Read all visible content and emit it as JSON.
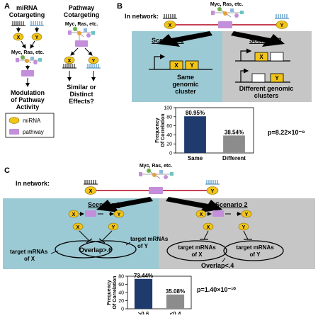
{
  "panels": {
    "A": {
      "letter": "A",
      "mirna_title": [
        "miRNA",
        "Cotargeting"
      ],
      "pathway_title": [
        "Pathway",
        "Cotargeting"
      ],
      "gene_x": "X",
      "gene_y": "Y",
      "pathway_label": "Myc, Ras, etc.",
      "modulation": [
        "Modulation",
        "of Pathway",
        "Activity"
      ],
      "effects": [
        "Similar or",
        "Distinct",
        "Effects?"
      ],
      "legend": {
        "mirna": "miRNA",
        "pathway": "pathway"
      }
    },
    "B": {
      "letter": "B",
      "in_network": "In network:",
      "pathway_label": "Myc, Ras, etc.",
      "gene_x": "X",
      "gene_y": "Y",
      "scenario1": "Scenario 1",
      "scenario2": "Scenario 2",
      "same_cluster": [
        "Same",
        "genomic",
        "cluster"
      ],
      "diff_cluster": [
        "Different genomic",
        "clusters"
      ],
      "pvalue": "p=8.22×10⁻⁸"
    },
    "C": {
      "letter": "C",
      "in_network": "In network:",
      "pathway_label": "Myc, Ras, etc.",
      "gene_x": "X",
      "gene_y": "Y",
      "scenario1": "Scenario 1",
      "scenario2": "Scenario 2",
      "targets_x": [
        "target mRNAs",
        "of X"
      ],
      "targets_y": [
        "target mRNAs",
        "of Y"
      ],
      "overlap_high": "Overlap>.6",
      "overlap_low": "Overlap<.4",
      "pvalue": "p=1.40×10⁻¹⁰"
    }
  },
  "chart_data": [
    {
      "type": "bar",
      "categories": [
        "Same",
        "Different"
      ],
      "values": [
        80.95,
        38.54
      ],
      "value_labels": [
        "80.95%",
        "38.54%"
      ],
      "ylabel": [
        "Frequency",
        "Of Correlation"
      ],
      "ylim": [
        0,
        100
      ],
      "yticks": [
        0,
        20,
        40,
        60,
        80,
        100
      ],
      "colors": [
        "#1f3a6d",
        "#8c8c8c"
      ]
    },
    {
      "type": "bar",
      "categories": [
        ">0.6",
        "<0.4"
      ],
      "values": [
        73.44,
        35.08
      ],
      "value_labels": [
        "73.44%",
        "35.08%"
      ],
      "ylabel": [
        "Frequency",
        "Of Correlation"
      ],
      "ylim": [
        0,
        80
      ],
      "yticks": [
        0,
        20,
        40,
        60,
        80
      ],
      "colors": [
        "#1f3a6d",
        "#8c8c8c"
      ]
    }
  ],
  "colors": {
    "gene": "#f0c419",
    "pathway": "#c38fdb",
    "teal": "#9ccad4",
    "gray": "#c6c6c6",
    "mirna_black": "#000000",
    "mirna_blue": "#2c7fb8",
    "network_line": "#b3001b"
  }
}
